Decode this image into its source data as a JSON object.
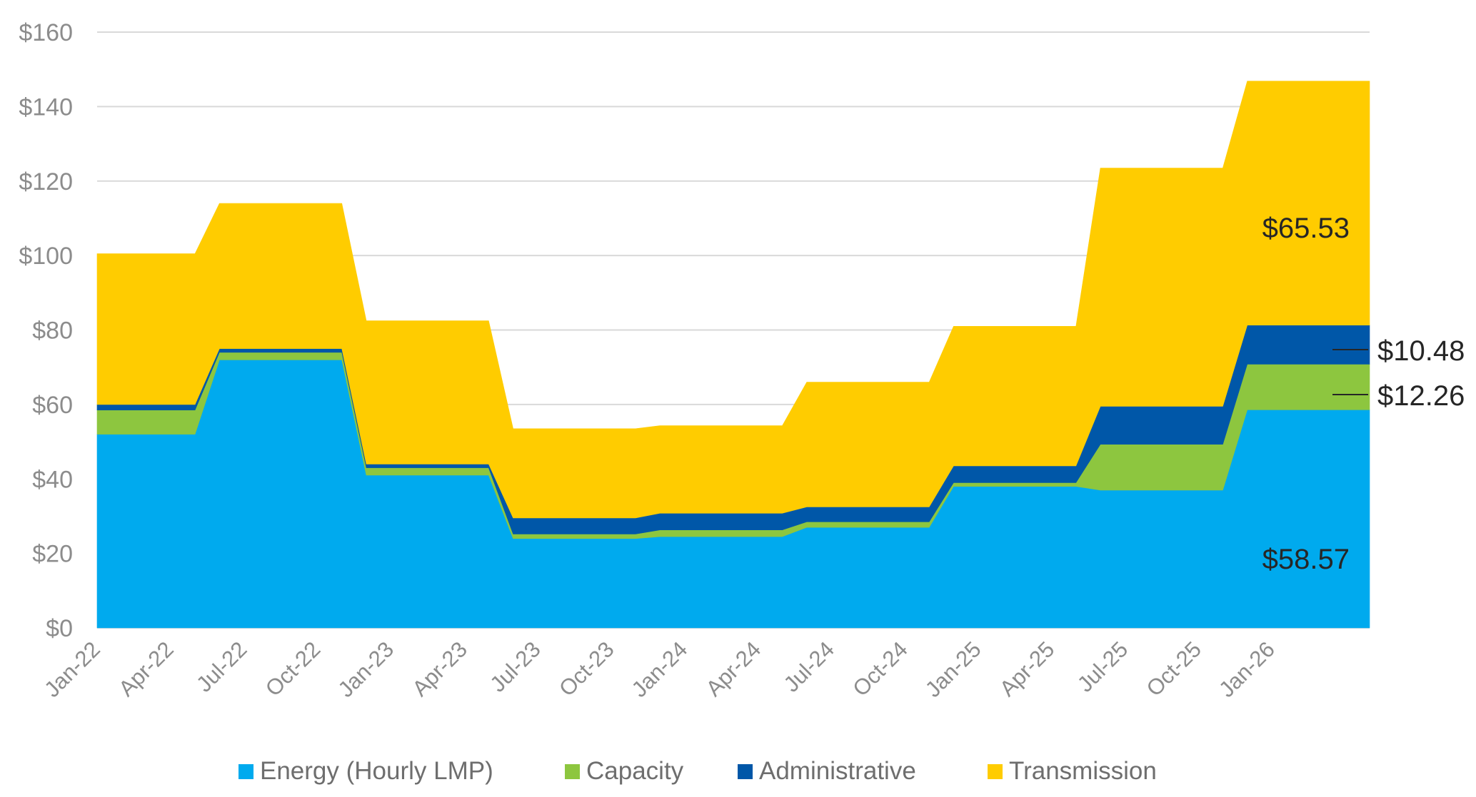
{
  "chart_data": {
    "type": "area",
    "stacked": true,
    "categories": [
      "Jan-22",
      "Feb-22",
      "Mar-22",
      "Apr-22",
      "May-22",
      "Jun-22",
      "Jul-22",
      "Aug-22",
      "Sep-22",
      "Oct-22",
      "Nov-22",
      "Dec-22",
      "Jan-23",
      "Feb-23",
      "Mar-23",
      "Apr-23",
      "May-23",
      "Jun-23",
      "Jul-23",
      "Aug-23",
      "Sep-23",
      "Oct-23",
      "Nov-23",
      "Dec-23",
      "Jan-24",
      "Feb-24",
      "Mar-24",
      "Apr-24",
      "May-24",
      "Jun-24",
      "Jul-24",
      "Aug-24",
      "Sep-24",
      "Oct-24",
      "Nov-24",
      "Dec-24",
      "Jan-25",
      "Feb-25",
      "Mar-25",
      "Apr-25",
      "May-25",
      "Jun-25",
      "Jul-25",
      "Aug-25",
      "Sep-25",
      "Oct-25",
      "Nov-25",
      "Dec-25",
      "Jan-26",
      "Feb-26",
      "Mar-26",
      "Apr-26",
      "May-26"
    ],
    "tick_labels": [
      "Jan-22",
      "Apr-22",
      "Jul-22",
      "Oct-22",
      "Jan-23",
      "Apr-23",
      "Jul-23",
      "Oct-23",
      "Jan-24",
      "Apr-24",
      "Jul-24",
      "Oct-24",
      "Jan-25",
      "Apr-25",
      "Jul-25",
      "Oct-25",
      "Jan-26"
    ],
    "y_tick_labels": [
      "$0",
      "$20",
      "$40",
      "$60",
      "$80",
      "$100",
      "$120",
      "$140",
      "$160"
    ],
    "ylim": [
      0,
      160
    ],
    "y_step": 20,
    "grid": true,
    "legend_position": "bottom",
    "series": [
      {
        "name": "Energy (Hourly LMP)",
        "color": "#00AAEE",
        "values": [
          52,
          52,
          52,
          52,
          52,
          72,
          72,
          72,
          72,
          72,
          72,
          41,
          41,
          41,
          41,
          41,
          41,
          24,
          24,
          24,
          24,
          24,
          24,
          24.5,
          24.5,
          24.5,
          24.5,
          24.5,
          24.5,
          27,
          27,
          27,
          27,
          27,
          27,
          38,
          38,
          38,
          38,
          38,
          38,
          37,
          37,
          37,
          37,
          37,
          37,
          58.57,
          58.57,
          58.57,
          58.57,
          58.57,
          58.57
        ]
      },
      {
        "name": "Capacity",
        "color": "#8DC63F",
        "values": [
          6.5,
          6.5,
          6.5,
          6.5,
          6.5,
          2,
          2,
          2,
          2,
          2,
          2,
          2,
          2,
          2,
          2,
          2,
          2,
          1.2,
          1.2,
          1.2,
          1.2,
          1.2,
          1.2,
          1.8,
          1.8,
          1.8,
          1.8,
          1.8,
          1.8,
          1.5,
          1.5,
          1.5,
          1.5,
          1.5,
          1.5,
          1,
          1,
          1,
          1,
          1,
          1,
          12.3,
          12.3,
          12.3,
          12.3,
          12.3,
          12.3,
          12.26,
          12.26,
          12.26,
          12.26,
          12.26,
          12.26
        ]
      },
      {
        "name": "Administrative",
        "color": "#0057A8",
        "values": [
          1.5,
          1.5,
          1.5,
          1.5,
          1.5,
          1,
          1,
          1,
          1,
          1,
          1,
          1,
          1,
          1,
          1,
          1,
          1,
          4.3,
          4.3,
          4.3,
          4.3,
          4.3,
          4.3,
          4.5,
          4.5,
          4.5,
          4.5,
          4.5,
          4.5,
          4,
          4,
          4,
          4,
          4,
          4,
          4.5,
          4.5,
          4.5,
          4.5,
          4.5,
          4.5,
          10.2,
          10.2,
          10.2,
          10.2,
          10.2,
          10.2,
          10.48,
          10.48,
          10.48,
          10.48,
          10.48,
          10.48
        ]
      },
      {
        "name": "Transmission",
        "color": "#FFCC00",
        "values": [
          40.5,
          40.5,
          40.5,
          40.5,
          40.5,
          39,
          39,
          39,
          39,
          39,
          39,
          38.5,
          38.5,
          38.5,
          38.5,
          38.5,
          38.5,
          24,
          24,
          24,
          24,
          24,
          24,
          23.5,
          23.5,
          23.5,
          23.5,
          23.5,
          23.5,
          33.5,
          33.5,
          33.5,
          33.5,
          33.5,
          33.5,
          37.5,
          37.5,
          37.5,
          37.5,
          37.5,
          37.5,
          64,
          64,
          64,
          64,
          64,
          64,
          65.53,
          65.53,
          65.53,
          65.53,
          65.53,
          65.53
        ]
      }
    ],
    "annotations": {
      "transmission_last": "$65.53",
      "energy_last": "$58.57",
      "administrative_last": "$10.48",
      "capacity_last": "$12.26"
    }
  }
}
